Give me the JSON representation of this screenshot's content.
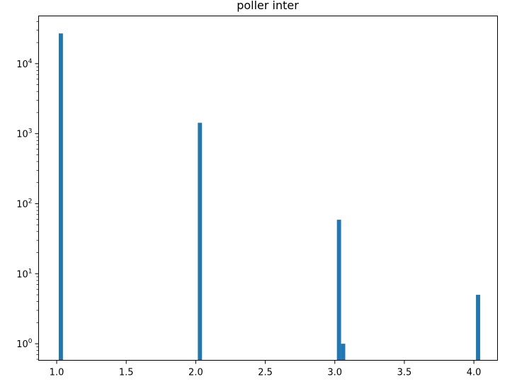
{
  "chart_data": {
    "type": "bar",
    "title": "poller inter",
    "xlabel": "",
    "ylabel": "",
    "yscale": "log",
    "xlim": [
      0.87,
      4.17
    ],
    "ylim": [
      0.58,
      48000
    ],
    "grid": false,
    "bar_color": "#1f77b4",
    "bar_width": 0.03,
    "x_ticks": [
      {
        "value": 1.0,
        "label": "1.0"
      },
      {
        "value": 1.5,
        "label": "1.5"
      },
      {
        "value": 2.0,
        "label": "2.0"
      },
      {
        "value": 2.5,
        "label": "2.5"
      },
      {
        "value": 3.0,
        "label": "3.0"
      },
      {
        "value": 3.5,
        "label": "3.5"
      },
      {
        "value": 4.0,
        "label": "4.0"
      }
    ],
    "y_ticks": [
      {
        "value": 1,
        "base": "10",
        "exp": "0"
      },
      {
        "value": 10,
        "base": "10",
        "exp": "1"
      },
      {
        "value": 100,
        "base": "10",
        "exp": "2"
      },
      {
        "value": 1000,
        "base": "10",
        "exp": "3"
      },
      {
        "value": 10000,
        "base": "10",
        "exp": "4"
      }
    ],
    "bars": [
      {
        "x": 1.03,
        "value": 27000
      },
      {
        "x": 2.03,
        "value": 1430
      },
      {
        "x": 3.03,
        "value": 59
      },
      {
        "x": 3.06,
        "value": 1
      },
      {
        "x": 4.03,
        "value": 5
      }
    ]
  }
}
